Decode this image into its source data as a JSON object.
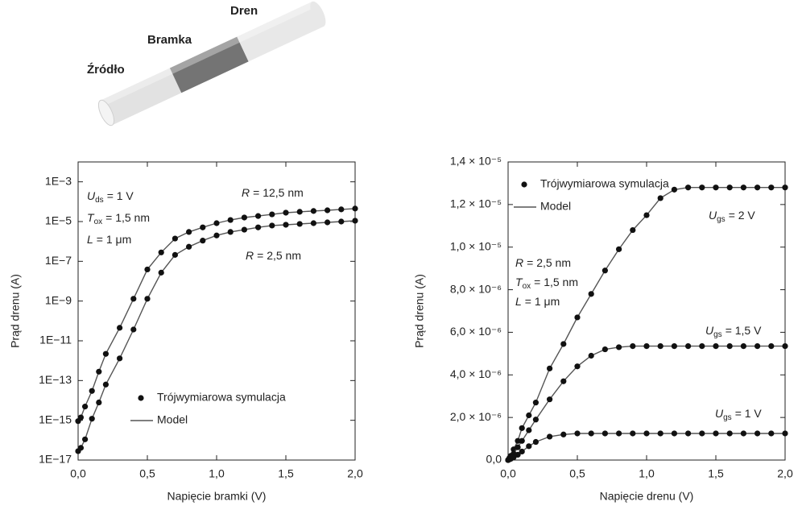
{
  "diagram": {
    "labels": [
      "Źródło",
      "Bramka",
      "Dren"
    ]
  },
  "chart_data": [
    {
      "type": "line",
      "log_y": true,
      "markers": true,
      "xlabel": "Napięcie bramki (V)",
      "ylabel": "Prąd drenu (A)",
      "xlim": [
        0,
        2
      ],
      "ylim": [
        1e-17,
        0.01
      ],
      "xticks": [
        {
          "value": 0,
          "label": "0,0"
        },
        {
          "value": 0.5,
          "label": "0,5"
        },
        {
          "value": 1,
          "label": "1,0"
        },
        {
          "value": 1.5,
          "label": "1,5"
        },
        {
          "value": 2,
          "label": "2,0"
        }
      ],
      "yticks": [
        {
          "value": 1e-17,
          "label": "1E−17"
        },
        {
          "value": 1e-15,
          "label": "1E−15"
        },
        {
          "value": 1e-13,
          "label": "1E−13"
        },
        {
          "value": 1e-11,
          "label": "1E−11"
        },
        {
          "value": 1e-09,
          "label": "1E−9"
        },
        {
          "value": 1e-07,
          "label": "1E−7"
        },
        {
          "value": 1e-05,
          "label": "1E−5"
        },
        {
          "value": 0.001,
          "label": "1E−3"
        }
      ],
      "legend": [
        {
          "name": "Trójwymiarowa symulacja",
          "style": "marker"
        },
        {
          "name": "Model",
          "style": "line"
        }
      ],
      "legend_loc": "lower center",
      "annotations": [
        {
          "symbol": "U",
          "sub": "ds",
          "text": "= 1 V"
        },
        {
          "symbol": "T",
          "sub": "ox",
          "text": "= 1,5 nm"
        },
        {
          "symbol": "L",
          "text": "= 1 μm"
        }
      ],
      "x": [
        0,
        0.02,
        0.05,
        0.1,
        0.15,
        0.2,
        0.3,
        0.4,
        0.5,
        0.6,
        0.7,
        0.8,
        0.9,
        1.0,
        1.1,
        1.2,
        1.3,
        1.4,
        1.5,
        1.6,
        1.7,
        1.8,
        1.9,
        2.0
      ],
      "series": [
        {
          "name": {
            "symbol": "R",
            "text": "= 12,5 nm"
          },
          "color": "#111111",
          "line_color": "#555555",
          "values": [
            9.1e-16,
            1.4e-15,
            4.9e-15,
            3e-14,
            2.8e-13,
            2.2e-12,
            4.5e-11,
            1.3e-09,
            3.9e-08,
            2.8e-07,
            1.4e-06,
            3e-06,
            5.1e-06,
            8.3e-06,
            1.2e-05,
            1.6e-05,
            1.9e-05,
            2.3e-05,
            2.8e-05,
            3.1e-05,
            3.4e-05,
            3.7e-05,
            4.1e-05,
            4.5e-05
          ]
        },
        {
          "name": {
            "symbol": "R",
            "text": "= 2,5 nm"
          },
          "color": "#111111",
          "line_color": "#555555",
          "values": [
            2.8e-17,
            4.1e-17,
            1.1e-16,
            1.2e-15,
            7.9e-15,
            6.3e-14,
            1.3e-12,
            3.7e-11,
            1.3e-09,
            2.7e-08,
            2.1e-07,
            5.4e-07,
            1.1e-06,
            2e-06,
            3e-06,
            3.9e-06,
            5.1e-06,
            6.3e-06,
            6.9e-06,
            7.6e-06,
            8.3e-06,
            9.1e-06,
            1e-05,
            1.1e-05
          ]
        }
      ]
    },
    {
      "type": "line",
      "log_y": false,
      "markers": true,
      "xlabel": "Napięcie drenu (V)",
      "ylabel": "Prąd drenu (A)",
      "xlim": [
        0,
        2
      ],
      "ylim": [
        0,
        1.4e-05
      ],
      "xticks": [
        {
          "value": 0,
          "label": "0,0"
        },
        {
          "value": 0.5,
          "label": "0,5"
        },
        {
          "value": 1,
          "label": "1,0"
        },
        {
          "value": 1.5,
          "label": "1,5"
        },
        {
          "value": 2,
          "label": "2,0"
        }
      ],
      "yticks": [
        {
          "value": 0,
          "label": "0,0"
        },
        {
          "value": 2e-06,
          "label": "2,0 × 10⁻⁶"
        },
        {
          "value": 4e-06,
          "label": "4,0 × 10⁻⁶"
        },
        {
          "value": 6e-06,
          "label": "6,0 × 10⁻⁶"
        },
        {
          "value": 8e-06,
          "label": "8,0 × 10⁻⁶"
        },
        {
          "value": 1e-05,
          "label": "1,0 × 10⁻⁵"
        },
        {
          "value": 1.2e-05,
          "label": "1,2 × 10⁻⁵"
        },
        {
          "value": 1.4e-05,
          "label": "1,4 × 10⁻⁵"
        }
      ],
      "legend": [
        {
          "name": "Trójwymiarowa symulacja",
          "style": "marker"
        },
        {
          "name": "Model",
          "style": "line"
        }
      ],
      "legend_loc": "upper left",
      "annotations": [
        {
          "symbol": "R",
          "text": "= 2,5 nm"
        },
        {
          "symbol": "T",
          "sub": "ox",
          "text": "= 1,5 nm"
        },
        {
          "symbol": "L",
          "text": "= 1 μm"
        }
      ],
      "x": [
        0,
        0.01,
        0.02,
        0.04,
        0.07,
        0.1,
        0.15,
        0.2,
        0.3,
        0.4,
        0.5,
        0.6,
        0.7,
        0.8,
        0.9,
        1.0,
        1.1,
        1.2,
        1.3,
        1.4,
        1.5,
        1.6,
        1.7,
        1.8,
        1.9,
        2.0
      ],
      "series": [
        {
          "name": {
            "symbol": "U",
            "sub": "gs",
            "text": "= 2 V"
          },
          "color": "#111111",
          "line_color": "#555555",
          "values": [
            0,
            1e-07,
            2e-07,
            5e-07,
            9e-07,
            1.5e-06,
            2.1e-06,
            2.7e-06,
            4.3e-06,
            5.45e-06,
            6.7e-06,
            7.8e-06,
            8.9e-06,
            9.9e-06,
            1.08e-05,
            1.15e-05,
            1.23e-05,
            1.27e-05,
            1.28e-05,
            1.28e-05,
            1.28e-05,
            1.28e-05,
            1.28e-05,
            1.28e-05,
            1.28e-05,
            1.28e-05
          ]
        },
        {
          "name": {
            "symbol": "U",
            "sub": "gs",
            "text": "= 1,5 V"
          },
          "color": "#111111",
          "line_color": "#555555",
          "values": [
            0,
            6e-08,
            1.3e-07,
            3e-07,
            6e-07,
            9e-07,
            1.4e-06,
            1.9e-06,
            2.85e-06,
            3.7e-06,
            4.4e-06,
            4.9e-06,
            5.2e-06,
            5.3e-06,
            5.35e-06,
            5.35e-06,
            5.35e-06,
            5.35e-06,
            5.35e-06,
            5.35e-06,
            5.35e-06,
            5.35e-06,
            5.35e-06,
            5.35e-06,
            5.35e-06,
            5.35e-06
          ]
        },
        {
          "name": {
            "symbol": "U",
            "sub": "gs",
            "text": "= 1 V"
          },
          "color": "#111111",
          "line_color": "#555555",
          "values": [
            0,
            3e-08,
            6e-08,
            1.3e-07,
            2.5e-07,
            4e-07,
            6.5e-07,
            8.5e-07,
            1.1e-06,
            1.2e-06,
            1.25e-06,
            1.25e-06,
            1.25e-06,
            1.25e-06,
            1.25e-06,
            1.25e-06,
            1.25e-06,
            1.25e-06,
            1.25e-06,
            1.25e-06,
            1.25e-06,
            1.25e-06,
            1.25e-06,
            1.25e-06,
            1.25e-06,
            1.25e-06
          ]
        }
      ]
    }
  ]
}
